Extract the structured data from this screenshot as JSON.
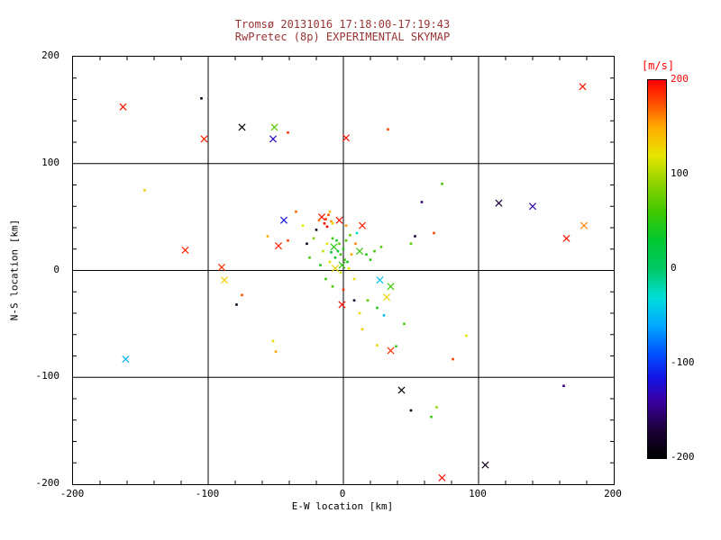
{
  "colors": {
    "title": "#993333",
    "text": "#000000",
    "colorbar_label": "#ff0000",
    "background": "#ffffff",
    "grid": "#000000"
  },
  "chart_data": {
    "type": "scatter",
    "title": "Tromsø 20131016 17:18:00-17:19:43",
    "subtitle": "RwPretec (8p) EXPERIMENTAL SKYMAP",
    "xlabel": "E-W location [km]",
    "ylabel": "N-S location [km]",
    "xlim": [
      -200,
      200
    ],
    "ylim": [
      -200,
      200
    ],
    "xticks": [
      -200,
      -100,
      0,
      100,
      200
    ],
    "yticks": [
      -200,
      -100,
      0,
      100,
      200
    ],
    "minor_tick_step": 20,
    "grid": true,
    "value_unit": "m/s",
    "colorbar": {
      "label": "[m/s]",
      "min": -200,
      "max": 200,
      "ticks": [
        200,
        100,
        0,
        -100,
        -200
      ],
      "stops": [
        [
          -200,
          "#000000"
        ],
        [
          -170,
          "#1c0038"
        ],
        [
          -140,
          "#3a00a0"
        ],
        [
          -115,
          "#1414e6"
        ],
        [
          -90,
          "#0050ff"
        ],
        [
          -60,
          "#00a8ff"
        ],
        [
          -30,
          "#00ded8"
        ],
        [
          0,
          "#00c865"
        ],
        [
          30,
          "#00c832"
        ],
        [
          60,
          "#3ec800"
        ],
        [
          90,
          "#8cd200"
        ],
        [
          120,
          "#e6e600"
        ],
        [
          150,
          "#ffaa00"
        ],
        [
          175,
          "#ff5000"
        ],
        [
          200,
          "#ff0000"
        ]
      ]
    },
    "points": [
      [
        -163,
        153,
        195,
        "x"
      ],
      [
        -105,
        161,
        -185,
        "."
      ],
      [
        177,
        172,
        195,
        "x"
      ],
      [
        -75,
        134,
        -195,
        "x"
      ],
      [
        -103,
        123,
        190,
        "x"
      ],
      [
        -51,
        134,
        70,
        "x"
      ],
      [
        -52,
        123,
        -125,
        "x"
      ],
      [
        -41,
        129,
        185,
        "."
      ],
      [
        2,
        124,
        195,
        "x"
      ],
      [
        33,
        132,
        180,
        "."
      ],
      [
        -147,
        75,
        135,
        "."
      ],
      [
        73,
        81,
        60,
        "."
      ],
      [
        58,
        64,
        -155,
        "."
      ],
      [
        115,
        63,
        -170,
        "x"
      ],
      [
        140,
        60,
        -135,
        "x"
      ],
      [
        165,
        30,
        195,
        "x"
      ],
      [
        178,
        42,
        160,
        "x"
      ],
      [
        -117,
        19,
        190,
        "x"
      ],
      [
        -90,
        3,
        185,
        "x"
      ],
      [
        -88,
        -9,
        130,
        "x"
      ],
      [
        -161,
        -83,
        -55,
        "x"
      ],
      [
        -79,
        -32,
        -185,
        "."
      ],
      [
        -75,
        -23,
        175,
        "."
      ],
      [
        -52,
        -66,
        125,
        "."
      ],
      [
        -50,
        -76,
        150,
        "."
      ],
      [
        43,
        -112,
        -195,
        "x"
      ],
      [
        163,
        -108,
        -150,
        "."
      ],
      [
        65,
        -137,
        55,
        "."
      ],
      [
        69,
        -128,
        95,
        "."
      ],
      [
        50,
        -131,
        -175,
        "."
      ],
      [
        73,
        -194,
        195,
        "x"
      ],
      [
        105,
        -182,
        -185,
        "x"
      ],
      [
        81,
        -83,
        180,
        "."
      ],
      [
        91,
        -61,
        120,
        "."
      ],
      [
        39,
        -71,
        50,
        "."
      ],
      [
        35,
        -75,
        185,
        "x"
      ],
      [
        25,
        -70,
        130,
        "."
      ],
      [
        -56,
        32,
        150,
        "."
      ],
      [
        -48,
        23,
        190,
        "x"
      ],
      [
        -27,
        25,
        -185,
        "."
      ],
      [
        -44,
        47,
        -115,
        "x"
      ],
      [
        -35,
        55,
        170,
        "."
      ],
      [
        67,
        35,
        180,
        "."
      ],
      [
        53,
        32,
        -170,
        "."
      ],
      [
        50,
        25,
        65,
        "."
      ],
      [
        -16,
        50,
        195,
        "x"
      ],
      [
        -13,
        48,
        185,
        "."
      ],
      [
        -11,
        52,
        175,
        "."
      ],
      [
        -14,
        44,
        195,
        "."
      ],
      [
        -9,
        46,
        155,
        "."
      ],
      [
        -12,
        41,
        200,
        "."
      ],
      [
        -18,
        47,
        165,
        "."
      ],
      [
        -10,
        55,
        140,
        "."
      ],
      [
        -3,
        47,
        195,
        "x"
      ],
      [
        2,
        42,
        155,
        "."
      ],
      [
        14,
        42,
        190,
        "x"
      ],
      [
        -20,
        38,
        -180,
        "."
      ],
      [
        -8,
        44,
        130,
        "."
      ],
      [
        -8,
        30,
        60,
        "."
      ],
      [
        -5,
        28,
        40,
        "."
      ],
      [
        -3,
        25,
        70,
        "."
      ],
      [
        -7,
        22,
        50,
        "x"
      ],
      [
        -4,
        18,
        30,
        "."
      ],
      [
        0,
        20,
        45,
        "."
      ],
      [
        -2,
        15,
        55,
        "."
      ],
      [
        -6,
        12,
        35,
        "."
      ],
      [
        1,
        10,
        60,
        "."
      ],
      [
        -1,
        5,
        50,
        "x"
      ],
      [
        3,
        8,
        40,
        "."
      ],
      [
        -9,
        17,
        25,
        "."
      ],
      [
        12,
        18,
        55,
        "x"
      ],
      [
        17,
        15,
        45,
        "."
      ],
      [
        20,
        10,
        50,
        "."
      ],
      [
        23,
        18,
        60,
        "."
      ],
      [
        28,
        22,
        70,
        "."
      ],
      [
        2,
        28,
        65,
        "."
      ],
      [
        -12,
        25,
        120,
        "."
      ],
      [
        -15,
        18,
        110,
        "."
      ],
      [
        -10,
        8,
        125,
        "."
      ],
      [
        -6,
        2,
        130,
        "x"
      ],
      [
        4,
        2,
        120,
        "."
      ],
      [
        -2,
        -2,
        115,
        "."
      ],
      [
        8,
        -8,
        125,
        "."
      ],
      [
        6,
        15,
        150,
        "."
      ],
      [
        9,
        25,
        160,
        "."
      ],
      [
        27,
        -9,
        -45,
        "x"
      ],
      [
        35,
        -15,
        60,
        "x"
      ],
      [
        32,
        -25,
        130,
        "x"
      ],
      [
        0,
        -18,
        185,
        "."
      ],
      [
        -1,
        -32,
        195,
        "x"
      ],
      [
        8,
        -28,
        -175,
        "."
      ],
      [
        12,
        -40,
        125,
        "."
      ],
      [
        25,
        -35,
        45,
        "."
      ],
      [
        30,
        -42,
        -50,
        "."
      ],
      [
        18,
        -28,
        70,
        "."
      ],
      [
        45,
        -50,
        60,
        "."
      ],
      [
        14,
        -55,
        135,
        "."
      ],
      [
        -41,
        28,
        180,
        "."
      ],
      [
        -30,
        42,
        120,
        "."
      ],
      [
        -22,
        30,
        85,
        "."
      ],
      [
        -25,
        12,
        60,
        "."
      ],
      [
        -17,
        5,
        45,
        "."
      ],
      [
        -13,
        -8,
        55,
        "."
      ],
      [
        -8,
        -15,
        65,
        "."
      ],
      [
        5,
        33,
        75,
        "."
      ],
      [
        10,
        35,
        -25,
        "."
      ]
    ]
  }
}
